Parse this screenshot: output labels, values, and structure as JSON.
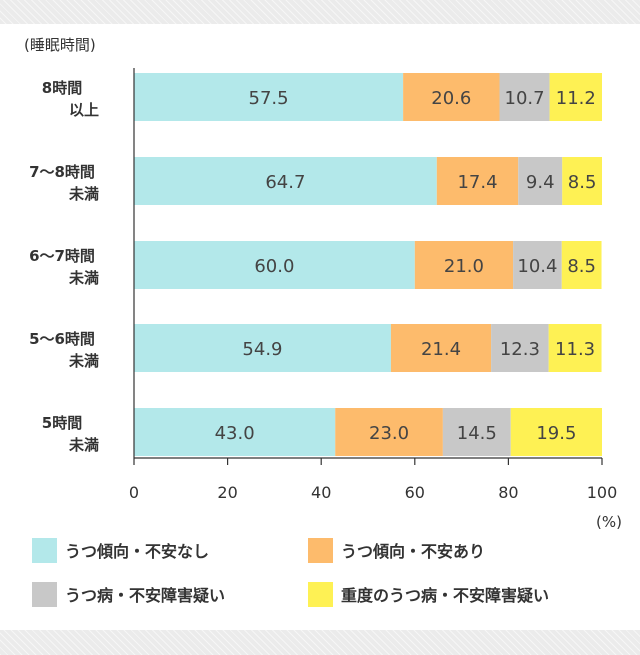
{
  "chart_data": {
    "type": "bar",
    "orientation": "horizontal",
    "stacked": true,
    "unit_label": "(睡眠時間)",
    "x_unit": "(%)",
    "xlim": [
      0,
      100
    ],
    "xticks": [
      "0",
      "20",
      "40",
      "60",
      "80",
      "100"
    ],
    "categories": [
      [
        "8時間",
        "以上"
      ],
      [
        "7～8時間",
        "未満"
      ],
      [
        "6～7時間",
        "未満"
      ],
      [
        "5～6時間",
        "未満"
      ],
      [
        "5時間",
        "未満"
      ]
    ],
    "series": [
      {
        "name": "うつ傾向・不安なし",
        "color": "#b3e8ea",
        "values": [
          57.5,
          64.7,
          60.0,
          54.9,
          43.0
        ],
        "labels": [
          "57.5",
          "64.7",
          "60.0",
          "54.9",
          "43.0"
        ]
      },
      {
        "name": "うつ傾向・不安あり",
        "color": "#fdbb6c",
        "values": [
          20.6,
          17.4,
          21.0,
          21.4,
          23.0
        ],
        "labels": [
          "20.6",
          "17.4",
          "21.0",
          "21.4",
          "23.0"
        ]
      },
      {
        "name": "うつ病・不安障害疑い",
        "color": "#c8c8c8",
        "values": [
          10.7,
          9.4,
          10.4,
          12.3,
          14.5
        ],
        "labels": [
          "10.7",
          "9.4",
          "10.4",
          "12.3",
          "14.5"
        ]
      },
      {
        "name": "重度のうつ病・不安障害疑い",
        "color": "#fef154",
        "values": [
          11.2,
          8.5,
          8.5,
          11.3,
          19.5
        ],
        "labels": [
          "11.2",
          "8.5",
          "8.5",
          "11.3",
          "19.5"
        ]
      }
    ],
    "legend_position": "bottom",
    "grid": false
  }
}
